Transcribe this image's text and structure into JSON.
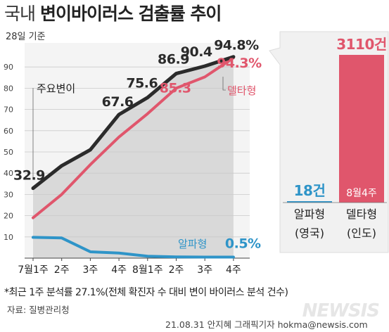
{
  "header": {
    "title_part1": "국내",
    "title_part2": "변이바이러스 검출률 추이",
    "subtitle": "28일 기준"
  },
  "chart_data": [
    {
      "type": "line",
      "categories": [
        "7월1주",
        "2주",
        "3주",
        "4주",
        "8월1주",
        "2주",
        "3주",
        "4주"
      ],
      "y_ticks": [
        10,
        20,
        30,
        40,
        50,
        60,
        70,
        80,
        90
      ],
      "ylim": [
        0,
        100
      ],
      "series": [
        {
          "name": "주요변이",
          "color": "#2b2b2b",
          "values": [
            32.9,
            43.5,
            51.0,
            67.6,
            75.6,
            86.9,
            90.4,
            94.8
          ],
          "labels": {
            "0": "32.9",
            "3": "67.6",
            "4": "75.6",
            "5": "86.9",
            "6": "90.4",
            "7": "94.8%"
          }
        },
        {
          "name": "델타형",
          "color": "#e0566c",
          "values": [
            19.0,
            30.0,
            44.0,
            57.0,
            68.0,
            80.0,
            85.3,
            94.3
          ],
          "labels": {
            "6": "85.3",
            "7": "94.3%"
          }
        },
        {
          "name": "알파형",
          "color": "#2e94c8",
          "values": [
            9.8,
            9.5,
            3.0,
            2.4,
            0.9,
            0.6,
            0.5,
            0.5
          ],
          "labels": {
            "7": "0.5%"
          }
        }
      ],
      "fill": "area under 주요변이 shaded grey",
      "grid": true
    },
    {
      "type": "bar",
      "categories": [
        "알파형\n(영국)",
        "델타형\n(인도)"
      ],
      "category_lines": [
        [
          "알파형",
          "(영국)"
        ],
        [
          "델타형",
          "(인도)"
        ]
      ],
      "values": [
        18,
        3110
      ],
      "value_labels": [
        "18건",
        "3110건"
      ],
      "colors": [
        "#2e94c8",
        "#e0566c"
      ],
      "inner_label": "8월4주"
    }
  ],
  "footnote": "*최근 1주 분석률 27.1%(전체 확진자 수 대비 변이 바이러스 분석 건수)",
  "source": "자료: 질병관리청",
  "credit": "21.08.31 안지혜 그래픽기자 hokma@newsis.com",
  "watermark": "NEWSIS"
}
